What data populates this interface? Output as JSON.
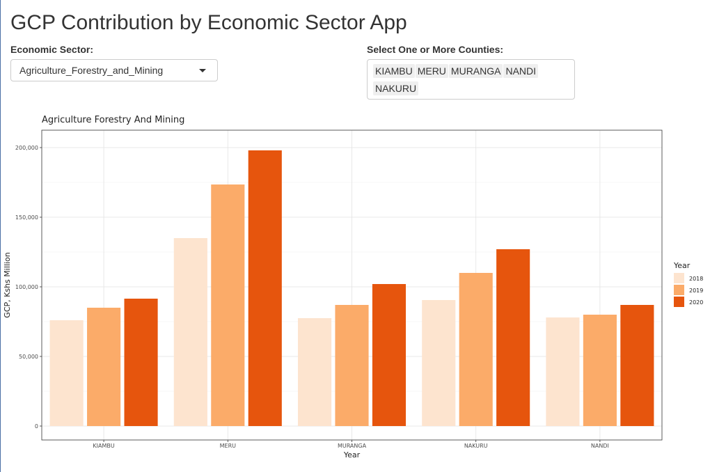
{
  "app": {
    "title": "GCP Contribution by Economic Sector App"
  },
  "controls": {
    "sector_label": "Economic Sector:",
    "sector_value": "Agriculture_Forestry_and_Mining",
    "counties_label": "Select One or More Counties:",
    "selected_counties": [
      "KIAMBU",
      "MERU",
      "MURANGA",
      "NANDI",
      "NAKURU"
    ]
  },
  "colors": {
    "2018": "#fde4cf",
    "2019": "#fbab69",
    "2020": "#e6550d",
    "grid": "#e3e3e3",
    "panel_border": "#333333"
  },
  "chart_data": {
    "type": "bar",
    "title": "Agriculture Forestry And Mining",
    "xlabel": "Year",
    "ylabel": "GCP, Kshs Million",
    "categories": [
      "KIAMBU",
      "MERU",
      "MURANGA",
      "NAKURU",
      "NANDI"
    ],
    "ylim": [
      0,
      205000
    ],
    "yticks": [
      0,
      50000,
      100000,
      150000,
      200000
    ],
    "ytick_labels": [
      "0",
      "50,000",
      "100,000",
      "150,000",
      "200,000"
    ],
    "grid": true,
    "legend": {
      "title": "Year",
      "position": "right"
    },
    "series": [
      {
        "name": "2018",
        "values": [
          76000,
          135000,
          77500,
          90500,
          78000
        ]
      },
      {
        "name": "2019",
        "values": [
          85000,
          173500,
          87000,
          110000,
          80000
        ]
      },
      {
        "name": "2020",
        "values": [
          91500,
          198000,
          102000,
          127000,
          87000
        ]
      }
    ]
  }
}
